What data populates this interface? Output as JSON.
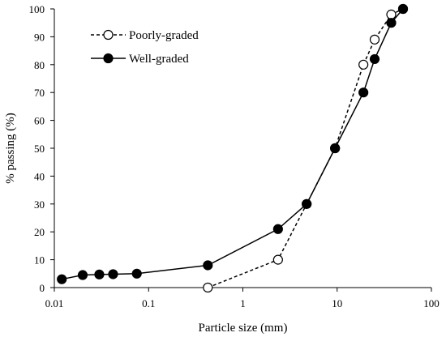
{
  "chart_data": {
    "type": "line",
    "xlabel": "Particle size (mm)",
    "ylabel": "% passing (%)",
    "x_scale": "log",
    "xlim": [
      0.01,
      100
    ],
    "ylim": [
      0,
      100
    ],
    "x_ticks": [
      0.01,
      0.1,
      1,
      10,
      100
    ],
    "x_tick_labels": [
      "0.01",
      "0.1",
      "1",
      "10",
      "100"
    ],
    "y_ticks": [
      0,
      10,
      20,
      30,
      40,
      50,
      60,
      70,
      80,
      90,
      100
    ],
    "y_tick_labels": [
      "0",
      "10",
      "20",
      "30",
      "40",
      "50",
      "60",
      "70",
      "80",
      "90",
      "100"
    ],
    "grid": false,
    "legend_position": "top-left",
    "series": [
      {
        "name": "Poorly-graded",
        "line_style": "dashed",
        "marker": "open-circle",
        "x": [
          0.425,
          2.36,
          4.75,
          9.5,
          19,
          25,
          37.5,
          50
        ],
        "y": [
          0,
          10,
          30,
          50,
          80,
          89,
          98,
          100
        ]
      },
      {
        "name": "Well-graded",
        "line_style": "solid",
        "marker": "filled-circle",
        "x": [
          0.012,
          0.02,
          0.03,
          0.042,
          0.075,
          0.425,
          2.36,
          4.75,
          9.5,
          19,
          25,
          37.5,
          50
        ],
        "y": [
          3,
          4.5,
          4.7,
          4.8,
          5,
          8,
          21,
          30,
          50,
          70,
          82,
          95,
          100
        ]
      }
    ]
  }
}
